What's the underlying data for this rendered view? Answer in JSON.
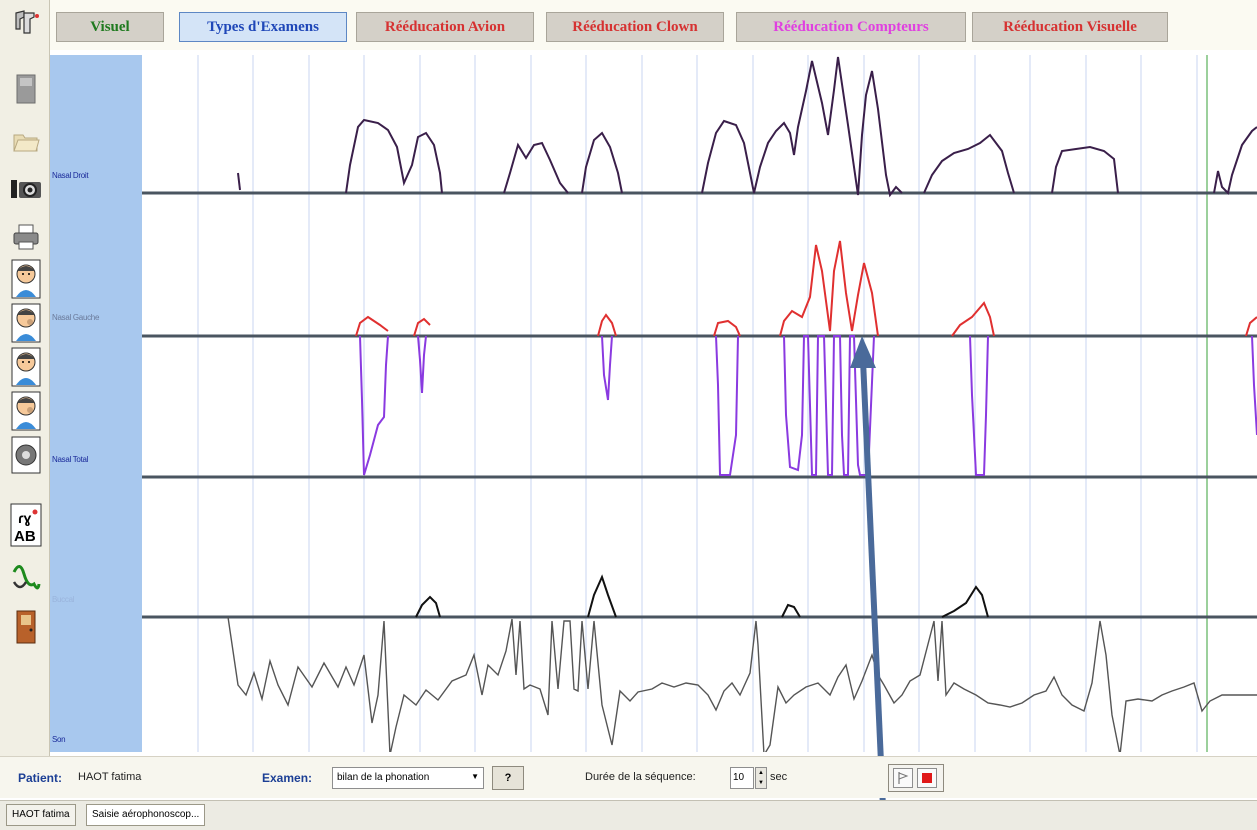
{
  "tabs": [
    {
      "label": "Visuel",
      "color": "#1f7a1f",
      "active": false
    },
    {
      "label": "Types d'Examens",
      "color": "#1f47b8",
      "active": true
    },
    {
      "label": "Rééducation Avion",
      "color": "#d63232",
      "active": false
    },
    {
      "label": "Rééducation Clown",
      "color": "#d63232",
      "active": false
    },
    {
      "label": "Rééducation Compteurs",
      "color": "#e040e0",
      "active": false
    },
    {
      "label": "Rééducation Visuelle",
      "color": "#d63232",
      "active": false
    }
  ],
  "toolbar_icons": [
    "pipette-icon",
    "save-icon",
    "open-folder-icon",
    "camera-icon",
    "print-icon",
    "patient-face-1-icon",
    "patient-face-2-icon",
    "patient-face-3-icon",
    "patient-face-4-icon",
    "speaker-icon",
    "phoneme-ab-icon",
    "sine-wave-icon",
    "exit-door-icon"
  ],
  "channels": [
    {
      "label": "Nasal Droit",
      "label_color": "#1a2a9a"
    },
    {
      "label": "Nasal Gauche",
      "label_color": "#6a7a9a"
    },
    {
      "label": "Nasal Total",
      "label_color": "#1a2a9a"
    },
    {
      "label": "Buccal",
      "label_color": "#9ab4dc"
    },
    {
      "label": "Son",
      "label_color": "#1a2a9a"
    }
  ],
  "colors": {
    "nasal_droit": "#3a1f4a",
    "nasal_gauche": "#e03030",
    "nasal_total": "#8a3ae0",
    "buccal": "#111111",
    "son": "#555555",
    "grid": "#c8d6f2",
    "baseline": "#4a5560",
    "cursor": "#7bc07b",
    "arrow": "#4a6a9a"
  },
  "bottom": {
    "patient_label": "Patient:",
    "patient_name": "HAOT fatima",
    "exam_label": "Examen:",
    "exam_value": "bilan de la phonation",
    "help_label": "?",
    "duration_label": "Durée de la séquence:",
    "duration_value": "10",
    "duration_unit": "sec"
  },
  "taskbar": {
    "tab1": "HAOT fatima",
    "tab2": "Saisie aérophonoscop..."
  }
}
